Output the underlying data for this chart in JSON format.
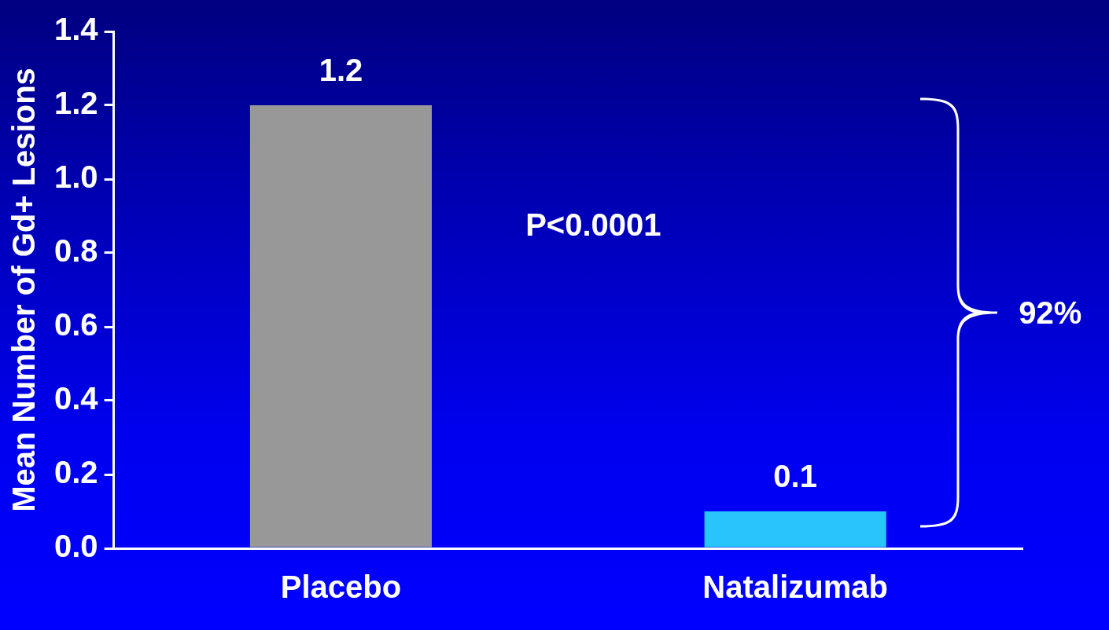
{
  "chart_data": {
    "type": "bar",
    "ylabel": "Mean Number of Gd+ Lesions",
    "categories": [
      "Placebo",
      "Natalizumab"
    ],
    "values": [
      1.2,
      0.1
    ],
    "colors": [
      "#989898",
      "#29c4fc"
    ],
    "ylim": [
      0,
      1.4
    ],
    "yticks": [
      {
        "value": 0,
        "label": "0.0"
      },
      0.2,
      0.4,
      0.6,
      0.8,
      {
        "value": 1,
        "label": "1.0"
      },
      1.2,
      1.4
    ],
    "data_labels": true,
    "annotations": [
      "P<0.0001",
      "92%"
    ]
  }
}
